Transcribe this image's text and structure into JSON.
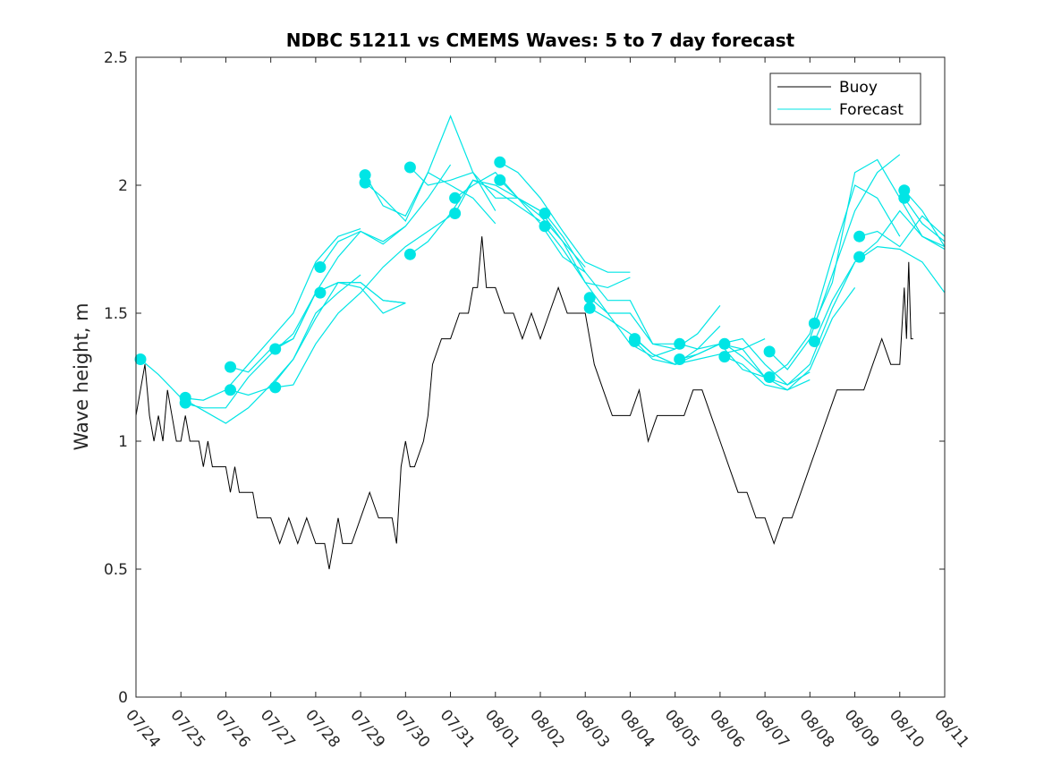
{
  "chart_data": {
    "type": "line",
    "title": "NDBC 51211 vs CMEMS Waves: 5 to 7 day forecast",
    "xlabel": "",
    "ylabel": "Wave height, m",
    "ylim": [
      0,
      2.5
    ],
    "xlim": [
      0,
      18
    ],
    "yticks": [
      0,
      0.5,
      1,
      1.5,
      2,
      2.5
    ],
    "ytick_labels": [
      "0",
      "0.5",
      "1",
      "1.5",
      "2",
      "2.5"
    ],
    "xticks": [
      0,
      1,
      2,
      3,
      4,
      5,
      6,
      7,
      8,
      9,
      10,
      11,
      12,
      13,
      14,
      15,
      16,
      17,
      18
    ],
    "xtick_labels": [
      "07/24",
      "07/25",
      "07/26",
      "07/27",
      "07/28",
      "07/29",
      "07/30",
      "07/31",
      "08/01",
      "08/02",
      "08/03",
      "08/04",
      "08/05",
      "08/06",
      "08/07",
      "08/08",
      "08/09",
      "08/10",
      "08/11"
    ],
    "x_unit_note": "x values are days since 07/24",
    "grid": false,
    "legend_position": "top-right",
    "series": [
      {
        "name": "Buoy",
        "color": "#000000",
        "x": [
          0,
          0.1,
          0.2,
          0.25,
          0.3,
          0.4,
          0.5,
          0.6,
          0.7,
          0.8,
          0.9,
          1.0,
          1.1,
          1.2,
          1.3,
          1.4,
          1.5,
          1.6,
          1.7,
          1.8,
          1.9,
          2.0,
          2.1,
          2.2,
          2.3,
          2.4,
          2.5,
          2.6,
          2.7,
          2.8,
          2.9,
          3.0,
          3.2,
          3.4,
          3.6,
          3.8,
          4.0,
          4.2,
          4.3,
          4.4,
          4.5,
          4.6,
          4.8,
          5.0,
          5.2,
          5.4,
          5.6,
          5.7,
          5.8,
          5.9,
          6.0,
          6.1,
          6.2,
          6.4,
          6.5,
          6.6,
          6.8,
          7.0,
          7.2,
          7.4,
          7.5,
          7.6,
          7.7,
          7.8,
          8.0,
          8.2,
          8.4,
          8.6,
          8.8,
          9.0,
          9.2,
          9.4,
          9.6,
          9.8,
          10.0,
          10.2,
          10.4,
          10.6,
          10.8,
          11.0,
          11.2,
          11.4,
          11.6,
          11.8,
          12.0,
          12.2,
          12.4,
          12.6,
          12.8,
          13.0,
          13.2,
          13.4,
          13.6,
          13.8,
          14.0,
          14.2,
          14.4,
          14.6,
          14.8,
          15.0,
          15.2,
          15.4,
          15.6,
          15.8,
          16.0,
          16.2,
          16.4,
          16.6,
          16.8,
          17.0,
          17.1,
          17.15,
          17.2,
          17.25,
          17.3
        ],
        "y": [
          1.1,
          1.2,
          1.3,
          1.2,
          1.1,
          1.0,
          1.1,
          1.0,
          1.2,
          1.1,
          1.0,
          1.0,
          1.1,
          1.0,
          1.0,
          1.0,
          0.9,
          1.0,
          0.9,
          0.9,
          0.9,
          0.9,
          0.8,
          0.9,
          0.8,
          0.8,
          0.8,
          0.8,
          0.7,
          0.7,
          0.7,
          0.7,
          0.6,
          0.7,
          0.6,
          0.7,
          0.6,
          0.6,
          0.5,
          0.6,
          0.7,
          0.6,
          0.6,
          0.7,
          0.8,
          0.7,
          0.7,
          0.7,
          0.6,
          0.9,
          1.0,
          0.9,
          0.9,
          1.0,
          1.1,
          1.3,
          1.4,
          1.4,
          1.5,
          1.5,
          1.6,
          1.6,
          1.8,
          1.6,
          1.6,
          1.5,
          1.5,
          1.4,
          1.5,
          1.4,
          1.5,
          1.6,
          1.5,
          1.5,
          1.5,
          1.3,
          1.2,
          1.1,
          1.1,
          1.1,
          1.2,
          1.0,
          1.1,
          1.1,
          1.1,
          1.1,
          1.2,
          1.2,
          1.1,
          1.0,
          0.9,
          0.8,
          0.8,
          0.7,
          0.7,
          0.6,
          0.7,
          0.7,
          0.8,
          0.9,
          1.0,
          1.1,
          1.2,
          1.2,
          1.2,
          1.2,
          1.3,
          1.4,
          1.3,
          1.3,
          1.6,
          1.4,
          1.7,
          1.4,
          1.4
        ]
      },
      {
        "name": "Forecast",
        "color": "#00e5e5",
        "segments": [
          {
            "x": [
              0.1,
              0.5,
              1.0,
              1.5,
              2.0,
              2.5,
              3.0,
              3.5,
              4.0,
              4.5,
              5.0
            ],
            "y": [
              1.32,
              1.26,
              1.17,
              1.16,
              1.2,
              1.3,
              1.4,
              1.5,
              1.7,
              1.8,
              1.83
            ]
          },
          {
            "x": [
              1.0,
              1.5,
              2.0,
              2.5,
              3.0,
              3.5,
              4.0,
              4.5,
              5.0,
              5.5,
              6.0
            ],
            "y": [
              1.15,
              1.13,
              1.13,
              1.25,
              1.34,
              1.42,
              1.58,
              1.62,
              1.62,
              1.55,
              1.54
            ]
          },
          {
            "x": [
              1.1,
              1.5,
              2.0,
              2.5,
              3.0,
              3.5,
              4.0,
              4.5,
              5.0
            ],
            "y": [
              1.16,
              1.12,
              1.07,
              1.13,
              1.22,
              1.32,
              1.5,
              1.58,
              1.65
            ]
          },
          {
            "x": [
              2.1,
              2.5,
              3.0,
              3.5,
              4.0,
              4.5,
              5.0,
              5.5,
              6.0
            ],
            "y": [
              1.29,
              1.27,
              1.36,
              1.4,
              1.58,
              1.72,
              1.82,
              1.77,
              1.84
            ]
          },
          {
            "x": [
              2.1,
              2.5,
              3.0,
              3.5,
              4.0,
              4.5,
              5.0,
              5.5,
              6.0
            ],
            "y": [
              1.2,
              1.18,
              1.21,
              1.32,
              1.48,
              1.62,
              1.6,
              1.5,
              1.54
            ]
          },
          {
            "x": [
              3.1,
              3.5,
              4.0,
              4.5,
              5.0,
              5.5,
              6.0
            ],
            "y": [
              1.36,
              1.4,
              1.58,
              1.62,
              1.62,
              1.55,
              1.54
            ]
          },
          {
            "x": [
              3.1,
              3.5,
              4.0,
              4.5,
              5.0,
              5.5,
              6.0,
              6.5,
              7.0
            ],
            "y": [
              1.21,
              1.22,
              1.38,
              1.5,
              1.58,
              1.68,
              1.76,
              1.82,
              1.88
            ]
          },
          {
            "x": [
              4.1,
              4.5,
              5.0,
              5.5,
              6.0,
              6.5,
              7.0
            ],
            "y": [
              1.68,
              1.78,
              1.82,
              1.78,
              1.84,
              1.95,
              2.08
            ]
          },
          {
            "x": [
              5.1,
              5.5,
              6.0,
              6.5,
              7.0,
              7.5,
              8.0
            ],
            "y": [
              2.04,
              1.92,
              1.88,
              2.05,
              2.0,
              1.95,
              1.85
            ]
          },
          {
            "x": [
              5.1,
              5.5,
              6.0,
              6.5,
              7.0,
              7.5,
              8.0
            ],
            "y": [
              2.01,
              1.95,
              1.86,
              2.05,
              2.27,
              2.05,
              1.9
            ]
          },
          {
            "x": [
              6.1,
              6.5,
              7.0,
              7.5,
              8.0,
              8.5,
              9.0
            ],
            "y": [
              2.07,
              2.0,
              2.02,
              2.05,
              1.95,
              1.95,
              1.9
            ]
          },
          {
            "x": [
              6.1,
              6.5,
              7.0,
              7.5,
              8.0,
              8.5,
              9.0
            ],
            "y": [
              1.73,
              1.78,
              1.89,
              2.02,
              1.98,
              1.92,
              1.86
            ]
          },
          {
            "x": [
              7.1,
              7.5,
              8.0,
              8.5,
              9.0,
              9.5,
              10.0
            ],
            "y": [
              1.95,
              2.0,
              2.05,
              1.95,
              1.88,
              1.78,
              1.68
            ]
          },
          {
            "x": [
              7.1,
              7.5,
              8.0,
              8.5,
              9.0,
              9.5,
              10.0
            ],
            "y": [
              1.89,
              2.02,
              2.0,
              1.95,
              1.85,
              1.72,
              1.66
            ]
          },
          {
            "x": [
              8.1,
              8.5,
              9.0,
              9.5,
              10.0,
              10.5,
              11.0
            ],
            "y": [
              2.09,
              2.05,
              1.95,
              1.82,
              1.7,
              1.66,
              1.66
            ]
          },
          {
            "x": [
              8.1,
              8.5,
              9.0,
              9.5,
              10.0,
              10.5,
              11.0
            ],
            "y": [
              2.02,
              1.95,
              1.9,
              1.78,
              1.62,
              1.6,
              1.64
            ]
          },
          {
            "x": [
              9.1,
              9.5,
              10.0,
              10.5,
              11.0,
              11.5,
              12.0
            ],
            "y": [
              1.89,
              1.8,
              1.66,
              1.55,
              1.55,
              1.38,
              1.38
            ]
          },
          {
            "x": [
              9.1,
              9.5,
              10.0,
              10.5,
              11.0,
              11.5,
              12.0
            ],
            "y": [
              1.84,
              1.75,
              1.62,
              1.5,
              1.38,
              1.33,
              1.36
            ]
          },
          {
            "x": [
              10.1,
              10.5,
              11.0,
              11.5,
              12.0,
              12.5,
              13.0
            ],
            "y": [
              1.56,
              1.5,
              1.5,
              1.38,
              1.36,
              1.42,
              1.53
            ]
          },
          {
            "x": [
              10.1,
              10.5,
              11.0,
              11.5,
              12.0,
              12.5,
              13.0
            ],
            "y": [
              1.52,
              1.48,
              1.42,
              1.34,
              1.3,
              1.36,
              1.45
            ]
          },
          {
            "x": [
              11.1,
              11.5,
              12.0,
              12.5,
              13.0,
              13.5,
              14.0
            ],
            "y": [
              1.4,
              1.34,
              1.3,
              1.32,
              1.34,
              1.36,
              1.4
            ]
          },
          {
            "x": [
              11.1,
              11.5,
              12.0,
              12.5,
              13.0,
              13.5,
              14.0
            ],
            "y": [
              1.39,
              1.32,
              1.3,
              1.34,
              1.38,
              1.28,
              1.25
            ]
          },
          {
            "x": [
              12.1,
              12.5,
              13.0,
              13.5,
              14.0,
              14.5,
              15.0
            ],
            "y": [
              1.38,
              1.36,
              1.38,
              1.4,
              1.3,
              1.22,
              1.27
            ]
          },
          {
            "x": [
              12.1,
              12.5,
              13.0,
              13.5,
              14.0,
              14.5,
              15.0
            ],
            "y": [
              1.32,
              1.34,
              1.38,
              1.36,
              1.25,
              1.2,
              1.24
            ]
          },
          {
            "x": [
              13.1,
              13.5,
              14.0,
              14.5,
              15.0,
              15.5,
              16.0
            ],
            "y": [
              1.38,
              1.33,
              1.25,
              1.22,
              1.3,
              1.52,
              1.7
            ]
          },
          {
            "x": [
              13.1,
              13.5,
              14.0,
              14.5,
              15.0,
              15.5,
              16.0
            ],
            "y": [
              1.33,
              1.3,
              1.22,
              1.2,
              1.28,
              1.48,
              1.6
            ]
          },
          {
            "x": [
              14.1,
              14.5,
              15.0,
              15.5,
              16.0,
              16.5,
              17.0
            ],
            "y": [
              1.35,
              1.28,
              1.4,
              1.65,
              1.9,
              2.05,
              2.12
            ]
          },
          {
            "x": [
              14.1,
              14.5,
              15.0,
              15.5,
              16.0,
              16.5,
              17.0
            ],
            "y": [
              1.25,
              1.3,
              1.42,
              1.72,
              2.0,
              1.95,
              1.8
            ]
          },
          {
            "x": [
              15.1,
              15.5,
              16.0,
              16.5,
              17.0,
              17.5,
              18.0
            ],
            "y": [
              1.46,
              1.62,
              2.05,
              2.1,
              1.95,
              1.8,
              1.75
            ]
          },
          {
            "x": [
              15.1,
              15.5,
              16.0,
              16.5,
              17.0,
              17.5,
              18.0
            ],
            "y": [
              1.39,
              1.55,
              1.7,
              1.76,
              1.75,
              1.7,
              1.58
            ]
          },
          {
            "x": [
              16.1,
              16.5,
              17.0,
              17.5,
              18.0
            ],
            "y": [
              1.8,
              1.82,
              1.76,
              1.88,
              1.8
            ]
          },
          {
            "x": [
              16.1,
              16.5,
              17.0,
              17.5,
              18.0
            ],
            "y": [
              1.72,
              1.78,
              1.9,
              1.8,
              1.76
            ]
          },
          {
            "x": [
              17.1,
              17.5,
              18.0
            ],
            "y": [
              1.98,
              1.9,
              1.76
            ]
          },
          {
            "x": [
              17.1,
              17.5,
              18.0
            ],
            "y": [
              1.95,
              1.85,
              1.78
            ]
          }
        ],
        "markers": [
          [
            0.1,
            1.32
          ],
          [
            1.1,
            1.17
          ],
          [
            1.1,
            1.15
          ],
          [
            2.1,
            1.29
          ],
          [
            2.1,
            1.2
          ],
          [
            3.1,
            1.36
          ],
          [
            3.1,
            1.21
          ],
          [
            4.1,
            1.68
          ],
          [
            4.1,
            1.58
          ],
          [
            5.1,
            2.04
          ],
          [
            5.1,
            2.01
          ],
          [
            6.1,
            2.07
          ],
          [
            6.1,
            1.73
          ],
          [
            7.1,
            1.95
          ],
          [
            7.1,
            1.89
          ],
          [
            8.1,
            2.09
          ],
          [
            8.1,
            2.02
          ],
          [
            9.1,
            1.89
          ],
          [
            9.1,
            1.84
          ],
          [
            10.1,
            1.56
          ],
          [
            10.1,
            1.52
          ],
          [
            11.1,
            1.4
          ],
          [
            11.1,
            1.39
          ],
          [
            12.1,
            1.38
          ],
          [
            12.1,
            1.32
          ],
          [
            13.1,
            1.38
          ],
          [
            13.1,
            1.33
          ],
          [
            14.1,
            1.35
          ],
          [
            14.1,
            1.25
          ],
          [
            15.1,
            1.46
          ],
          [
            15.1,
            1.39
          ],
          [
            16.1,
            1.8
          ],
          [
            16.1,
            1.72
          ],
          [
            17.1,
            1.98
          ],
          [
            17.1,
            1.95
          ]
        ]
      }
    ]
  }
}
